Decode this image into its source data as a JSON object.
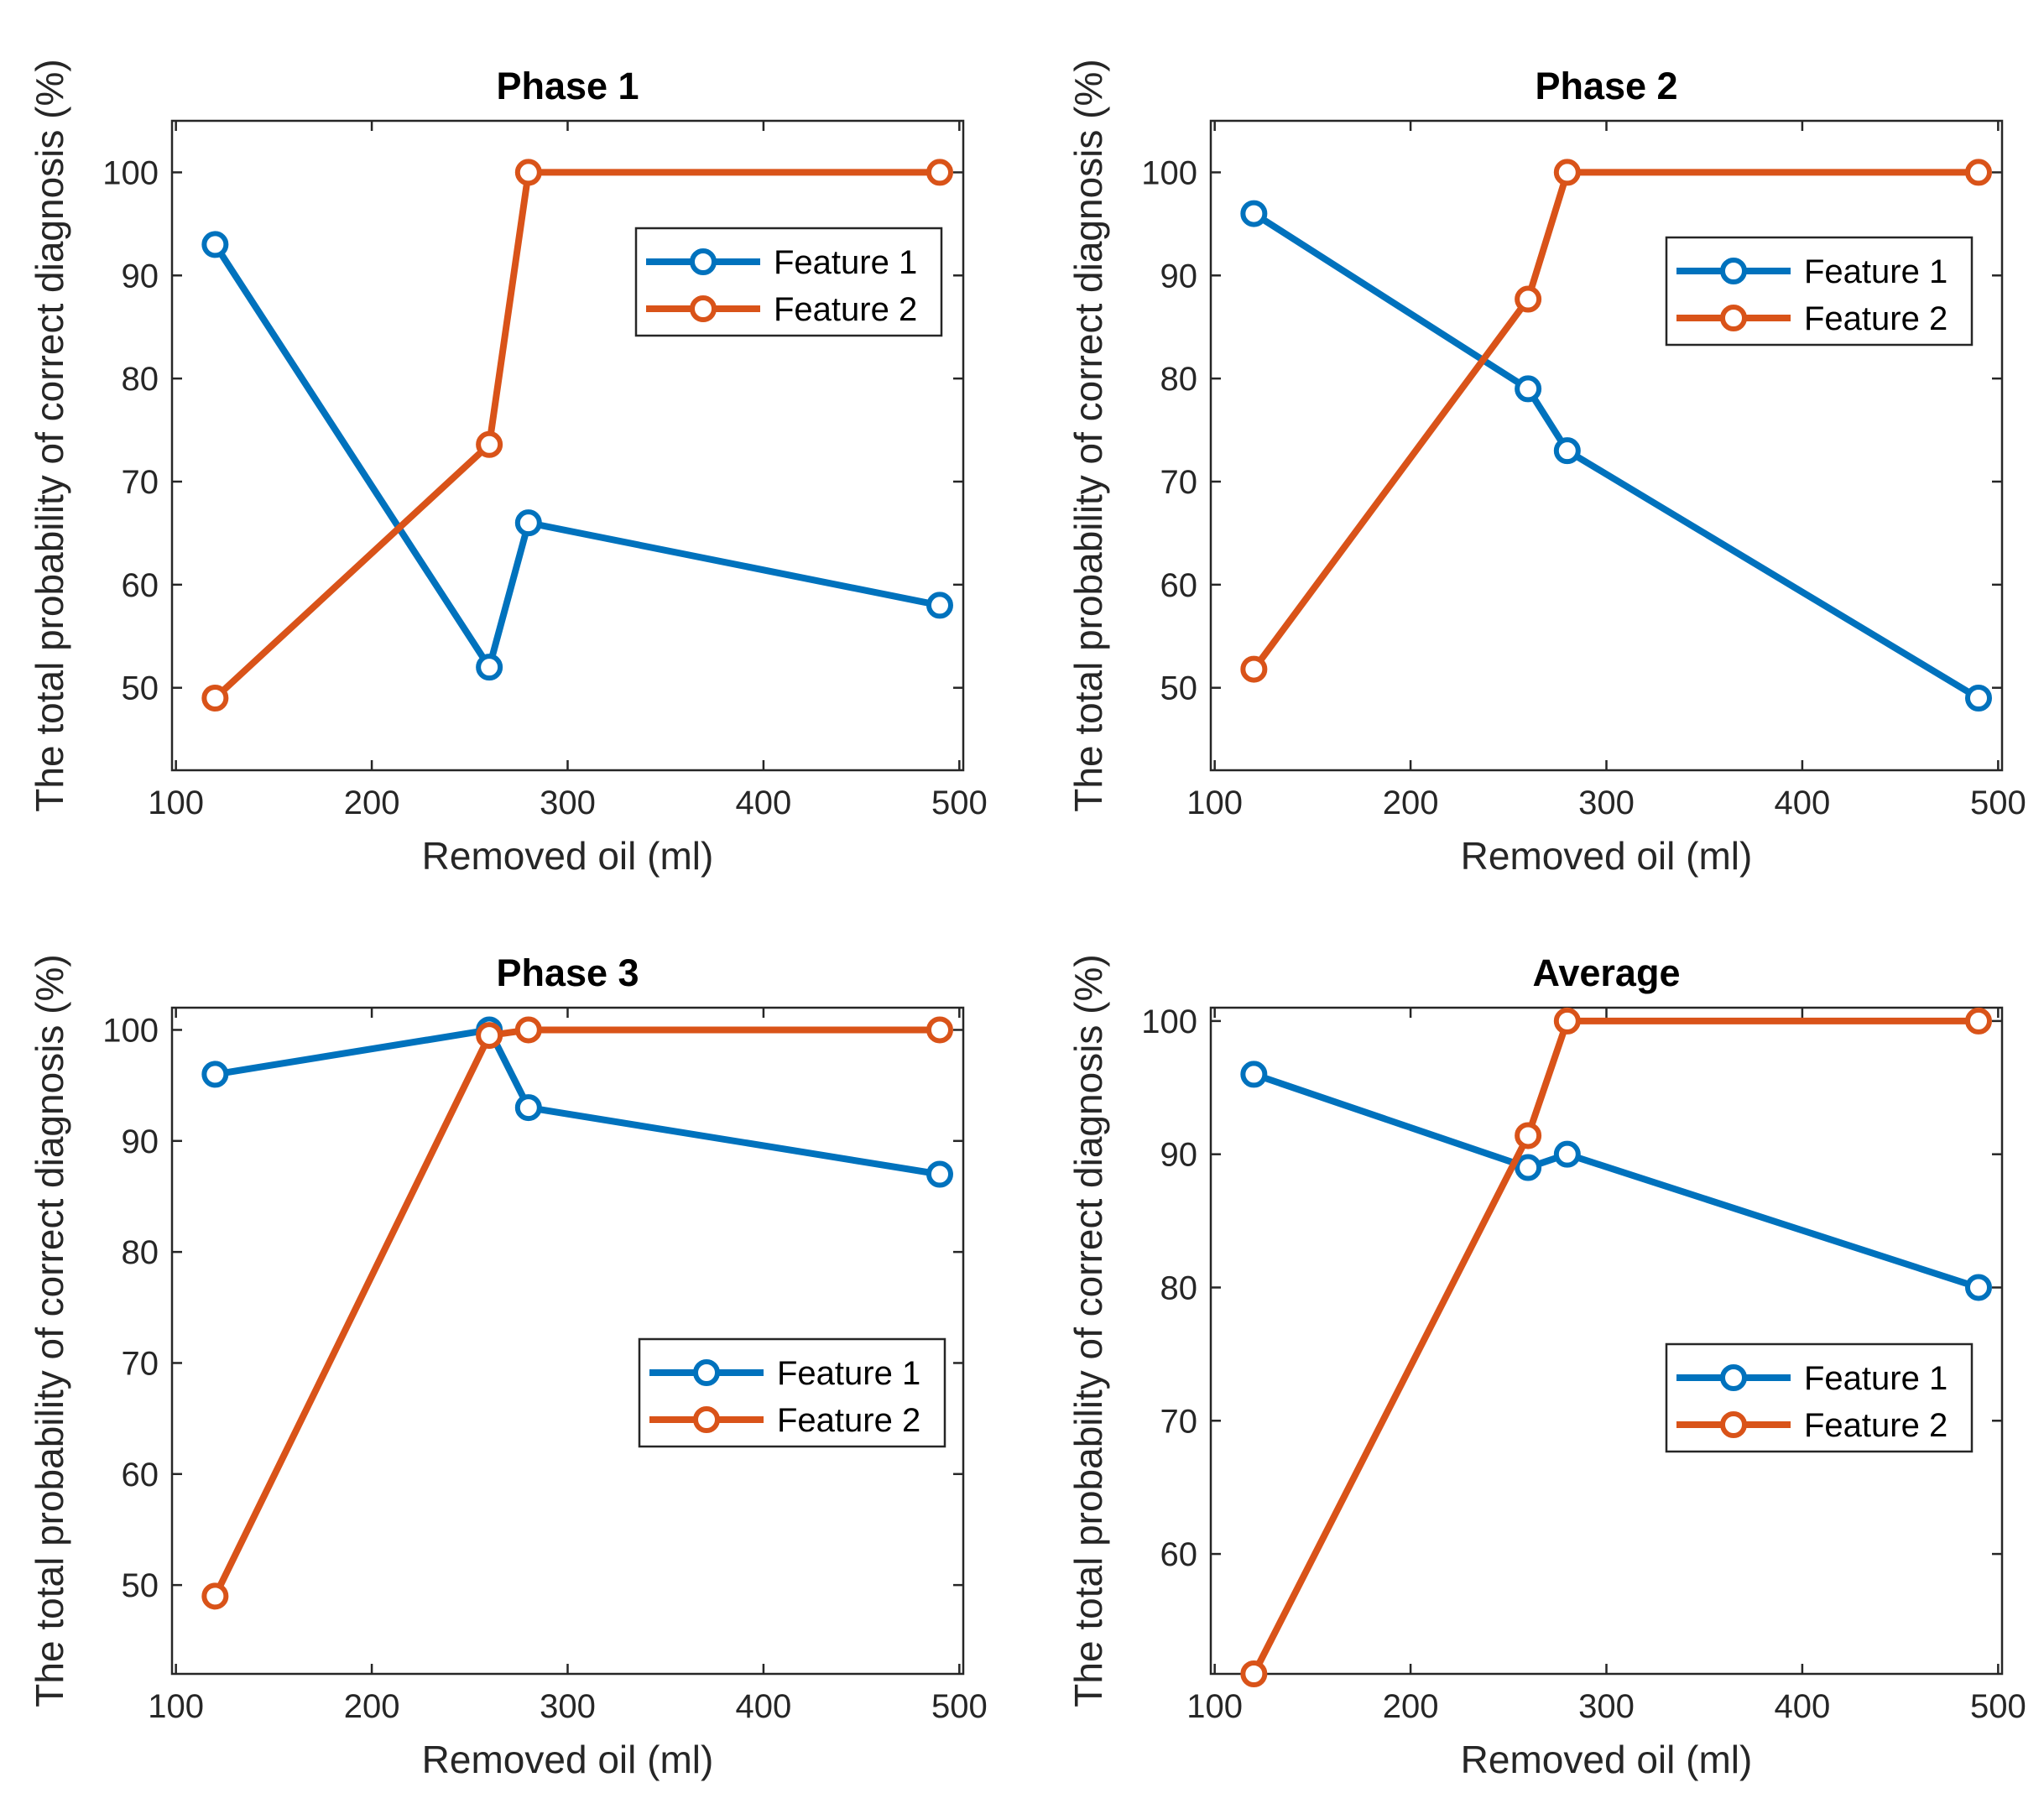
{
  "chart_data": [
    {
      "type": "line",
      "title": "Phase 1",
      "xlabel": "Removed oil (ml)",
      "ylabel": "The total probability of correct diagnosis (%)",
      "xlim": [
        98,
        502
      ],
      "ylim": [
        42,
        105
      ],
      "xticks": [
        100,
        200,
        300,
        400,
        500
      ],
      "yticks": [
        50,
        60,
        70,
        80,
        90,
        100
      ],
      "legend": "upper-right",
      "x": [
        120,
        260,
        280,
        490
      ],
      "series": [
        {
          "name": "Feature 1",
          "color": "#0072BD",
          "values": [
            93,
            52,
            66,
            58
          ]
        },
        {
          "name": "Feature 2",
          "color": "#D95319",
          "values": [
            49,
            73.6,
            100,
            100
          ]
        }
      ]
    },
    {
      "type": "line",
      "title": "Phase 2",
      "xlabel": "Removed oil (ml)",
      "ylabel": "The total probability of correct diagnosis (%)",
      "xlim": [
        98,
        502
      ],
      "ylim": [
        42,
        105
      ],
      "xticks": [
        100,
        200,
        300,
        400,
        500
      ],
      "yticks": [
        50,
        60,
        70,
        80,
        90,
        100
      ],
      "legend": "upper-right",
      "x": [
        120,
        260,
        280,
        490
      ],
      "series": [
        {
          "name": "Feature 1",
          "color": "#0072BD",
          "values": [
            96,
            79,
            73,
            49
          ]
        },
        {
          "name": "Feature 2",
          "color": "#D95319",
          "values": [
            51.8,
            87.7,
            100,
            100
          ]
        }
      ]
    },
    {
      "type": "line",
      "title": "Phase 3",
      "xlabel": "Removed oil (ml)",
      "ylabel": "The total probability of correct diagnosis (%)",
      "xlim": [
        98,
        502
      ],
      "ylim": [
        42,
        102
      ],
      "xticks": [
        100,
        200,
        300,
        400,
        500
      ],
      "yticks": [
        50,
        60,
        70,
        80,
        90,
        100
      ],
      "legend": "middle-right",
      "x": [
        120,
        260,
        280,
        490
      ],
      "series": [
        {
          "name": "Feature 1",
          "color": "#0072BD",
          "values": [
            96,
            100,
            93,
            87
          ]
        },
        {
          "name": "Feature 2",
          "color": "#D95319",
          "values": [
            49,
            99.5,
            100,
            100
          ]
        }
      ]
    },
    {
      "type": "line",
      "title": "Average",
      "xlabel": "Removed oil (ml)",
      "ylabel": "The total probability of correct diagnosis (%)",
      "xlim": [
        98,
        502
      ],
      "ylim": [
        51,
        101
      ],
      "xticks": [
        100,
        200,
        300,
        400,
        500
      ],
      "yticks": [
        60,
        70,
        80,
        90,
        100
      ],
      "legend": "middle-right",
      "x": [
        120,
        260,
        280,
        490
      ],
      "series": [
        {
          "name": "Feature 1",
          "color": "#0072BD",
          "values": [
            96,
            89,
            90,
            80
          ]
        },
        {
          "name": "Feature 2",
          "color": "#D95319",
          "values": [
            51,
            91.4,
            100,
            100
          ]
        }
      ]
    }
  ]
}
